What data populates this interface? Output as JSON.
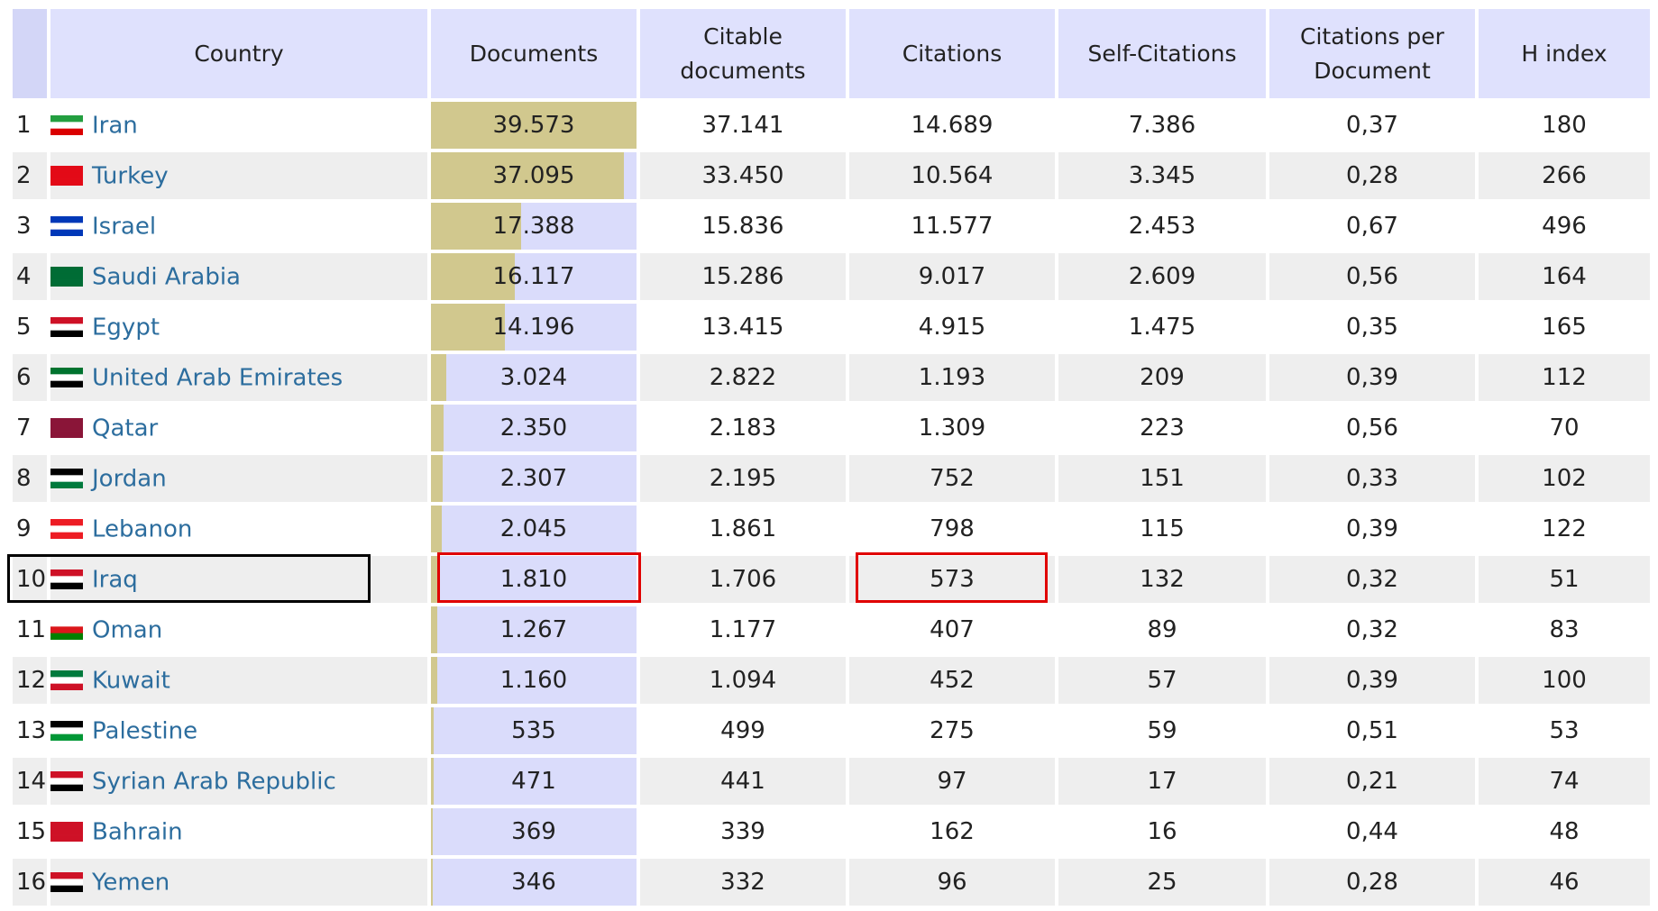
{
  "header": [
    "Country",
    "Documents",
    "Citable documents",
    "Citations",
    "Self-Citations",
    "Citations per Document",
    "H index"
  ],
  "table": {
    "rows": [
      {
        "rank": 1,
        "country": "Iran",
        "documents": {
          "value": 39573,
          "label": "39.573"
        },
        "citable": "37.141",
        "citations": "14.689",
        "self_citations": "7.386",
        "cpd": "0,37",
        "h_index": 180
      },
      {
        "rank": 2,
        "country": "Turkey",
        "documents": {
          "value": 37095,
          "label": "37.095"
        },
        "citable": "33.450",
        "citations": "10.564",
        "self_citations": "3.345",
        "cpd": "0,28",
        "h_index": 266
      },
      {
        "rank": 3,
        "country": "Israel",
        "documents": {
          "value": 17388,
          "label": "17.388"
        },
        "citable": "15.836",
        "citations": "11.577",
        "self_citations": "2.453",
        "cpd": "0,67",
        "h_index": 496
      },
      {
        "rank": 4,
        "country": "Saudi Arabia",
        "documents": {
          "value": 16117,
          "label": "16.117"
        },
        "citable": "15.286",
        "citations": "9.017",
        "self_citations": "2.609",
        "cpd": "0,56",
        "h_index": 164
      },
      {
        "rank": 5,
        "country": "Egypt",
        "documents": {
          "value": 14196,
          "label": "14.196"
        },
        "citable": "13.415",
        "citations": "4.915",
        "self_citations": "1.475",
        "cpd": "0,35",
        "h_index": 165
      },
      {
        "rank": 6,
        "country": "United Arab Emirates",
        "documents": {
          "value": 3024,
          "label": "3.024"
        },
        "citable": "2.822",
        "citations": "1.193",
        "self_citations": 209,
        "cpd": "0,39",
        "h_index": 112
      },
      {
        "rank": 7,
        "country": "Qatar",
        "documents": {
          "value": 2350,
          "label": "2.350"
        },
        "citable": "2.183",
        "citations": "1.309",
        "self_citations": 223,
        "cpd": "0,56",
        "h_index": 70
      },
      {
        "rank": 8,
        "country": "Jordan",
        "documents": {
          "value": 2307,
          "label": "2.307"
        },
        "citable": "2.195",
        "citations": 752,
        "self_citations": 151,
        "cpd": "0,33",
        "h_index": 102
      },
      {
        "rank": 9,
        "country": "Lebanon",
        "documents": {
          "value": 2045,
          "label": "2.045"
        },
        "citable": "1.861",
        "citations": 798,
        "self_citations": 115,
        "cpd": "0,39",
        "h_index": 122
      },
      {
        "rank": 10,
        "country": "Iraq",
        "documents": {
          "value": 1810,
          "label": "1.810"
        },
        "citable": "1.706",
        "citations": 573,
        "self_citations": 132,
        "cpd": "0,32",
        "h_index": 51
      },
      {
        "rank": 11,
        "country": "Oman",
        "documents": {
          "value": 1267,
          "label": "1.267"
        },
        "citable": "1.177",
        "citations": 407,
        "self_citations": 89,
        "cpd": "0,32",
        "h_index": 83
      },
      {
        "rank": 12,
        "country": "Kuwait",
        "documents": {
          "value": 1160,
          "label": "1.160"
        },
        "citable": "1.094",
        "citations": 452,
        "self_citations": 57,
        "cpd": "0,39",
        "h_index": 100
      },
      {
        "rank": 13,
        "country": "Palestine",
        "documents": {
          "value": 535,
          "label": "535"
        },
        "citable": 499,
        "citations": 275,
        "self_citations": 59,
        "cpd": "0,51",
        "h_index": 53
      },
      {
        "rank": 14,
        "country": "Syrian Arab Republic",
        "documents": {
          "value": 471,
          "label": "471"
        },
        "citable": 441,
        "citations": 97,
        "self_citations": 17,
        "cpd": "0,21",
        "h_index": 74
      },
      {
        "rank": 15,
        "country": "Bahrain",
        "documents": {
          "value": 369,
          "label": "369"
        },
        "citable": 339,
        "citations": 162,
        "self_citations": 16,
        "cpd": "0,44",
        "h_index": 48
      },
      {
        "rank": 16,
        "country": "Yemen",
        "documents": {
          "value": 346,
          "label": "346"
        },
        "citable": 332,
        "citations": 96,
        "self_citations": 25,
        "cpd": "0,28",
        "h_index": 46
      }
    ]
  }
}
